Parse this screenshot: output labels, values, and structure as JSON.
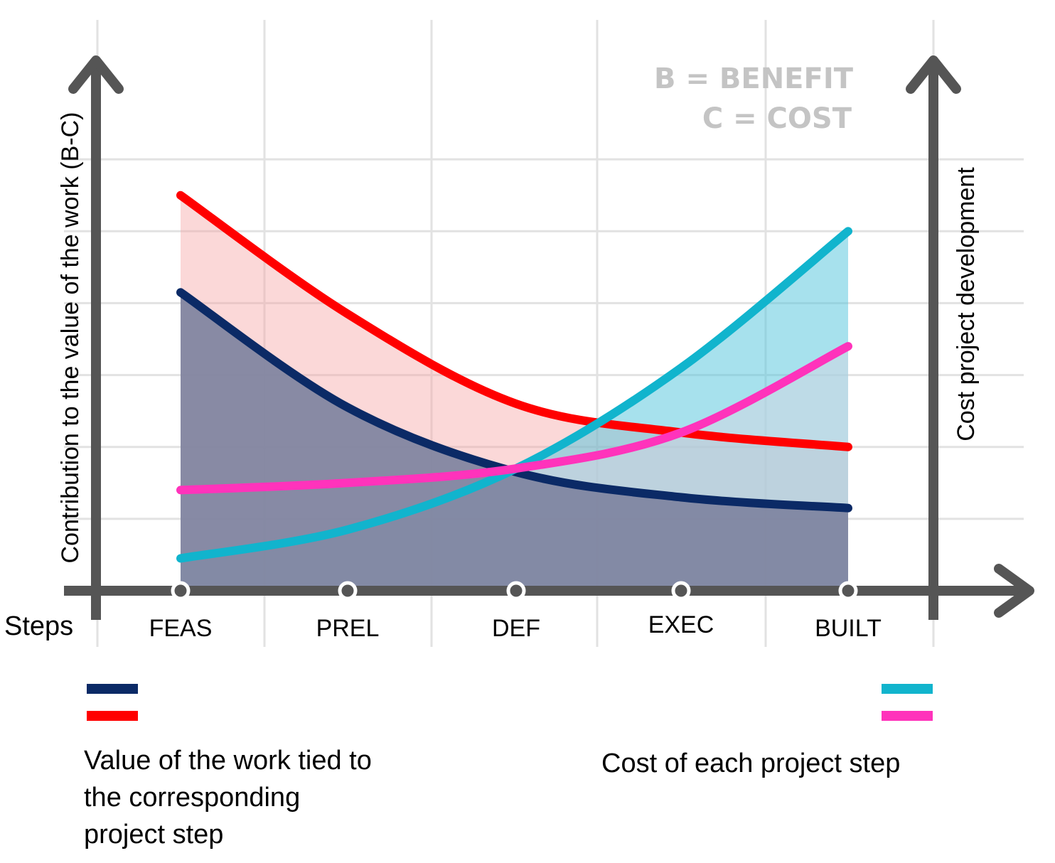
{
  "chart_data": {
    "type": "line",
    "categories": [
      "FEAS",
      "PREL",
      "DEF",
      "EXEC",
      "BUILT"
    ],
    "x_axis_label": "Steps",
    "y_axis_left_label": "Contribution to the value of the work (B-C)",
    "y_axis_right_label": "Cost project development",
    "annotation_benefit": "B = BENEFIT",
    "annotation_cost": "C = COST",
    "ylim": [
      0,
      7
    ],
    "series": [
      {
        "key": "value_navy",
        "axis": "left",
        "color": "#0b2a66",
        "fill": "#7e83a0",
        "fill_opacity": 0.92,
        "values": [
          4.15,
          2.55,
          1.65,
          1.3,
          1.15
        ]
      },
      {
        "key": "value_red",
        "axis": "left",
        "color": "#ff0000",
        "fill": "#f6a3a3",
        "fill_opacity": 0.42,
        "values": [
          5.5,
          3.85,
          2.6,
          2.2,
          2.0
        ]
      },
      {
        "key": "cost_cyan",
        "axis": "right",
        "color": "#11b4cd",
        "fill": "#4fc4dc",
        "fill_opacity": 0.5,
        "values": [
          0.45,
          0.85,
          1.7,
          3.1,
          5.0
        ]
      },
      {
        "key": "cost_pink",
        "axis": "right",
        "color": "#ff33bb",
        "fill": "#d6d6e2",
        "fill_opacity": 0.5,
        "values": [
          1.4,
          1.5,
          1.7,
          2.2,
          3.4
        ]
      }
    ],
    "legend": {
      "left_text": "Value of the work tied to the corresponding project step",
      "left_lines": [
        "Value of the work tied to",
        "the corresponding",
        "project step"
      ],
      "left_colors": [
        "#0b2a66",
        "#ff0000"
      ],
      "right_text": "Cost of each project step",
      "right_colors": [
        "#11b4cd",
        "#ff33bb"
      ]
    },
    "grid": true
  }
}
